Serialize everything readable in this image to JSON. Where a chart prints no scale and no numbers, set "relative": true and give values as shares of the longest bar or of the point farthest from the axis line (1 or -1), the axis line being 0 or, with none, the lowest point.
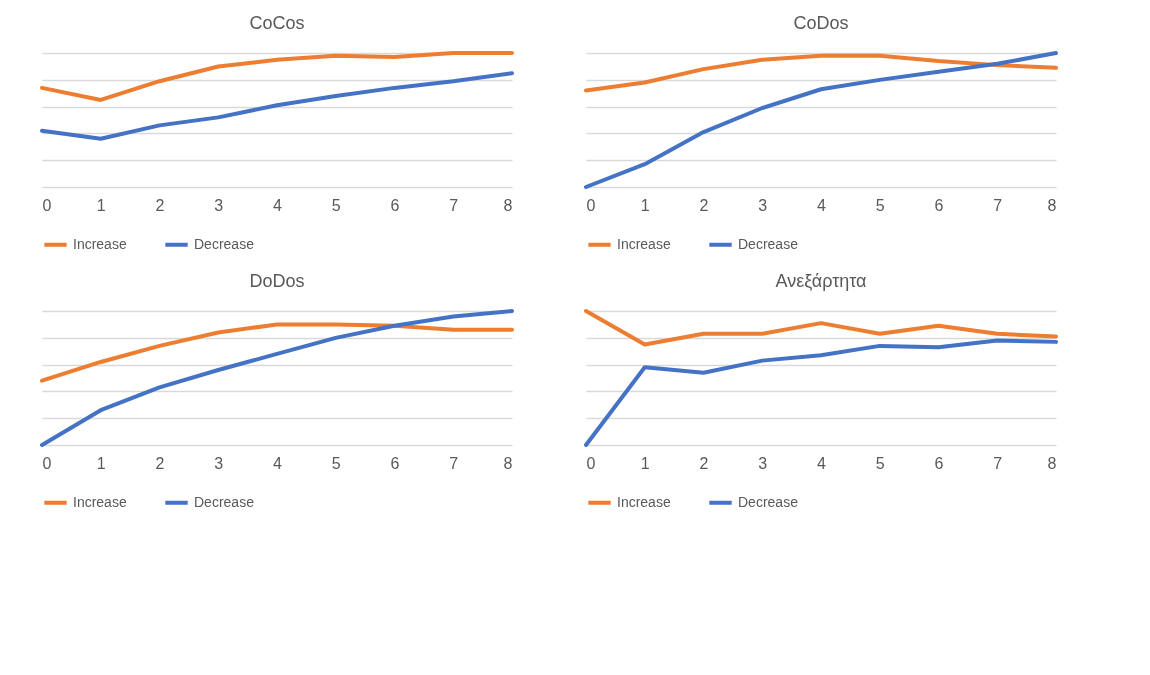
{
  "chart_data": [
    {
      "type": "line",
      "title": "CoCos",
      "relative": true,
      "grid": "y",
      "legend": "bottom",
      "categories": [
        "0",
        "1",
        "2",
        "3",
        "4",
        "5",
        "6",
        "7",
        "8"
      ],
      "series": [
        {
          "name": "Increase",
          "color": "#ed7d31",
          "values": [
            0.74,
            0.65,
            0.79,
            0.9,
            0.95,
            0.98,
            0.97,
            1.0,
            1.0
          ]
        },
        {
          "name": "Decrease",
          "color": "#4472c4",
          "values": [
            0.42,
            0.36,
            0.46,
            0.52,
            0.61,
            0.68,
            0.74,
            0.79,
            0.85
          ]
        }
      ]
    },
    {
      "type": "line",
      "title": "CoDos",
      "relative": true,
      "grid": "y",
      "legend": "bottom",
      "categories": [
        "0",
        "1",
        "2",
        "3",
        "4",
        "5",
        "6",
        "7",
        "8"
      ],
      "series": [
        {
          "name": "Increase",
          "color": "#ed7d31",
          "values": [
            0.72,
            0.78,
            0.88,
            0.95,
            0.98,
            0.98,
            0.94,
            0.91,
            0.89
          ]
        },
        {
          "name": "Decrease",
          "color": "#4472c4",
          "values": [
            0,
            0.17,
            0.41,
            0.59,
            0.73,
            0.8,
            0.86,
            0.92,
            1.0
          ]
        }
      ]
    },
    {
      "type": "line",
      "title": "DoDos",
      "relative": true,
      "grid": "y",
      "legend": "bottom",
      "categories": [
        "0",
        "1",
        "2",
        "3",
        "4",
        "5",
        "6",
        "7",
        "8"
      ],
      "series": [
        {
          "name": "Increase",
          "color": "#ed7d31",
          "values": [
            0.48,
            0.62,
            0.74,
            0.84,
            0.9,
            0.9,
            0.89,
            0.86,
            0.86
          ]
        },
        {
          "name": "Decrease",
          "color": "#4472c4",
          "values": [
            0,
            0.26,
            0.43,
            0.56,
            0.68,
            0.8,
            0.89,
            0.96,
            1.0
          ]
        }
      ]
    },
    {
      "type": "line",
      "title": "Ανεξάρτητα",
      "relative": true,
      "grid": "y",
      "legend": "bottom",
      "categories": [
        "0",
        "1",
        "2",
        "3",
        "4",
        "5",
        "6",
        "7",
        "8"
      ],
      "series": [
        {
          "name": "Increase",
          "color": "#ed7d31",
          "values": [
            1.0,
            0.75,
            0.83,
            0.83,
            0.91,
            0.83,
            0.89,
            0.83,
            0.81
          ]
        },
        {
          "name": "Decrease",
          "color": "#4472c4",
          "values": [
            0,
            0.58,
            0.54,
            0.63,
            0.67,
            0.74,
            0.73,
            0.78,
            0.77
          ]
        }
      ]
    }
  ]
}
